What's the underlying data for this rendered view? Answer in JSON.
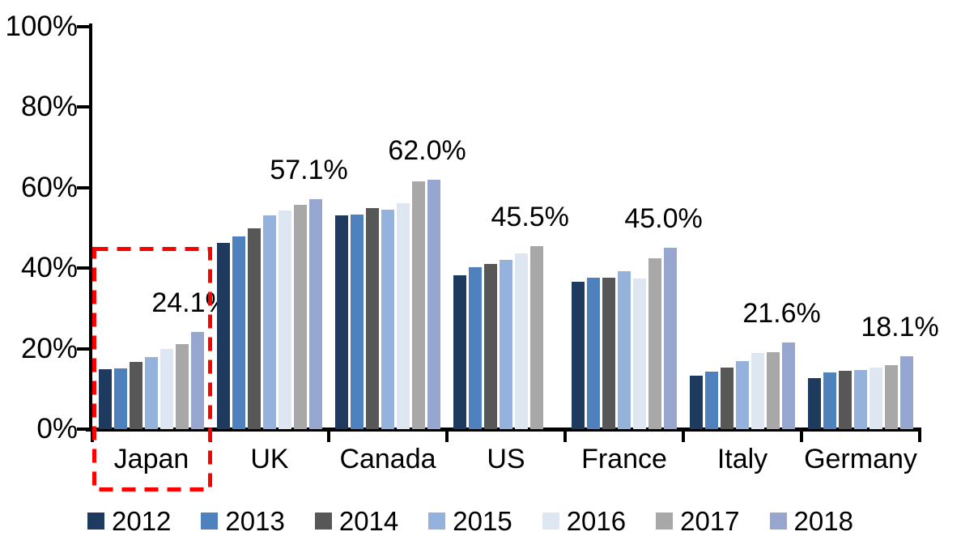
{
  "chart_data": {
    "type": "bar",
    "title": "",
    "categories": [
      "Japan",
      "UK",
      "Canada",
      "US",
      "France",
      "Italy",
      "Germany"
    ],
    "series": [
      {
        "name": "2012",
        "color": "#1E3A5F",
        "values": [
          14.9,
          46.3,
          53.1,
          38.2,
          36.6,
          13.3,
          12.6
        ]
      },
      {
        "name": "2013",
        "color": "#4E81BD",
        "values": [
          15.0,
          47.9,
          53.4,
          40.3,
          37.7,
          14.2,
          14.1
        ]
      },
      {
        "name": "2014",
        "color": "#575757",
        "values": [
          16.7,
          49.9,
          54.9,
          41.0,
          37.6,
          15.3,
          14.5
        ]
      },
      {
        "name": "2015",
        "color": "#94B2DB",
        "values": [
          18.0,
          53.2,
          54.6,
          42.1,
          39.2,
          16.9,
          14.7
        ]
      },
      {
        "name": "2016",
        "color": "#DEE6F2",
        "values": [
          19.9,
          54.3,
          56.1,
          43.6,
          37.4,
          18.9,
          15.3
        ]
      },
      {
        "name": "2017",
        "color": "#A8A8A8",
        "values": [
          21.2,
          55.7,
          61.6,
          45.5,
          42.4,
          19.1,
          15.9
        ]
      },
      {
        "name": "2018",
        "color": "#97A6CE",
        "values": [
          24.1,
          57.1,
          62.0,
          null,
          45.0,
          21.6,
          18.1
        ]
      }
    ],
    "data_labels": [
      "24.1%",
      "57.1%",
      "62.0%",
      "45.5%",
      "45.0%",
      "21.6%",
      "18.1%"
    ],
    "yticks": [
      "0%",
      "20%",
      "40%",
      "60%",
      "80%",
      "100%"
    ],
    "ytick_values": [
      0,
      20,
      40,
      60,
      80,
      100
    ],
    "ylim": [
      0,
      100
    ],
    "grid": false,
    "legend_position": "bottom",
    "legend": [
      "2012",
      "2013",
      "2014",
      "2015",
      "2016",
      "2017",
      "2018"
    ],
    "highlight": {
      "category": "Japan",
      "shape": "dashed-rectangle",
      "color": "#FF0000"
    },
    "axis_color": "#000000",
    "background_color": "#FFFFFF"
  }
}
